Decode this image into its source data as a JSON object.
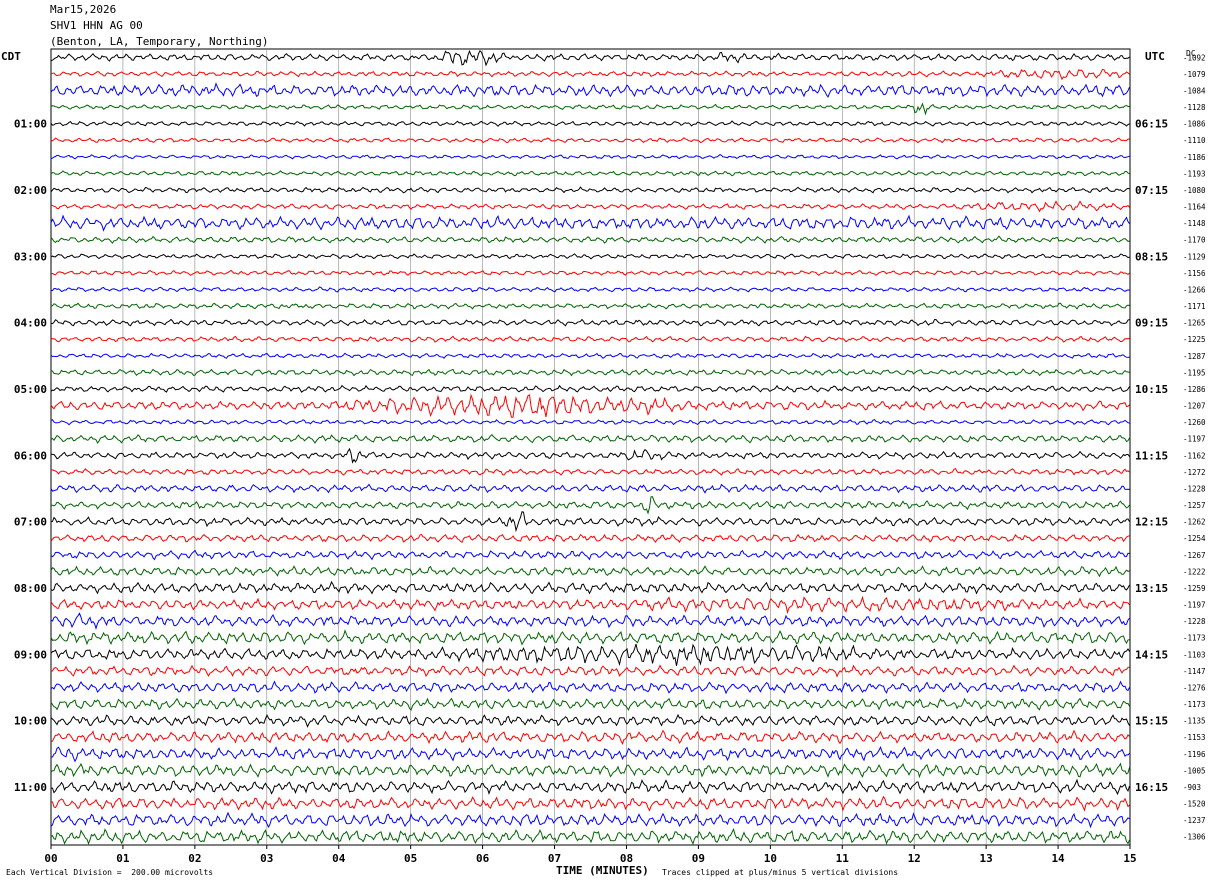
{
  "header": {
    "date": "Mar15,2026",
    "station": "SHV1 HHN AG 00",
    "location": "(Benton, LA, Temporary, Northing)"
  },
  "left_tz": "CDT",
  "right_tz": "UTC",
  "dc_label": "DC",
  "colors": [
    "#000000",
    "#ff0000",
    "#0000ff",
    "#006400"
  ],
  "footer": {
    "scale": "Each Vertical Division =  200.00 microvolts",
    "xlabel": "TIME (MINUTES)",
    "clip": "Traces clipped at plus/minus 5 vertical divisions"
  },
  "chart_data": {
    "type": "line",
    "title": "",
    "xlabel": "TIME (MINUTES)",
    "x_ticks": [
      "00",
      "01",
      "02",
      "03",
      "04",
      "05",
      "06",
      "07",
      "08",
      "09",
      "10",
      "11",
      "12",
      "13",
      "14",
      "15"
    ],
    "xlim": [
      0,
      15
    ],
    "trace_count": 48,
    "trace_minutes": 15,
    "left_hour_labels": [
      {
        "trace": 4,
        "label": "01:00"
      },
      {
        "trace": 8,
        "label": "02:00"
      },
      {
        "trace": 12,
        "label": "03:00"
      },
      {
        "trace": 16,
        "label": "04:00"
      },
      {
        "trace": 20,
        "label": "05:00"
      },
      {
        "trace": 24,
        "label": "06:00"
      },
      {
        "trace": 28,
        "label": "07:00"
      },
      {
        "trace": 32,
        "label": "08:00"
      },
      {
        "trace": 36,
        "label": "09:00"
      },
      {
        "trace": 40,
        "label": "10:00"
      },
      {
        "trace": 44,
        "label": "11:00"
      }
    ],
    "right_hour_labels": [
      {
        "trace": 4,
        "label": "06:15"
      },
      {
        "trace": 8,
        "label": "07:15"
      },
      {
        "trace": 12,
        "label": "08:15"
      },
      {
        "trace": 16,
        "label": "09:15"
      },
      {
        "trace": 20,
        "label": "10:15"
      },
      {
        "trace": 24,
        "label": "11:15"
      },
      {
        "trace": 28,
        "label": "12:15"
      },
      {
        "trace": 32,
        "label": "13:15"
      },
      {
        "trace": 36,
        "label": "14:15"
      },
      {
        "trace": 40,
        "label": "15:15"
      },
      {
        "trace": 44,
        "label": "16:15"
      }
    ],
    "dc_offsets": [
      -1092,
      -1079,
      -1084,
      -1128,
      -1086,
      -1110,
      -1186,
      -1193,
      -1080,
      -1164,
      -1148,
      -1170,
      -1129,
      -1156,
      -1266,
      -1171,
      -1265,
      -1225,
      -1287,
      -1195,
      -1286,
      -1207,
      -1260,
      -1197,
      -1162,
      -1272,
      -1228,
      -1257,
      -1262,
      -1254,
      -1267,
      -1222,
      -1259,
      -1197,
      -1228,
      -1173,
      -1103,
      -1147,
      -1276,
      -1173,
      -1135,
      -1153,
      -1196,
      -1005,
      -903,
      -1520,
      -1237,
      -1306
    ],
    "amplitude": [
      0.9,
      0.7,
      1.6,
      0.6,
      0.6,
      0.6,
      0.5,
      0.6,
      0.7,
      0.7,
      1.7,
      0.8,
      0.6,
      0.6,
      0.6,
      0.7,
      0.8,
      0.7,
      0.6,
      0.8,
      0.8,
      1.2,
      0.6,
      1.0,
      0.9,
      0.8,
      1.0,
      1.0,
      1.1,
      1.0,
      1.1,
      1.2,
      1.4,
      1.4,
      1.5,
      1.6,
      1.5,
      1.3,
      1.4,
      1.4,
      1.4,
      1.5,
      1.6,
      1.6,
      1.6,
      1.6,
      1.7,
      1.7
    ],
    "bursts": [
      {
        "trace": 0,
        "start_min": 5.3,
        "end_min": 6.3,
        "amp": 2.5
      },
      {
        "trace": 0,
        "start_min": 9.2,
        "end_min": 9.8,
        "amp": 1.6
      },
      {
        "trace": 1,
        "start_min": 13.0,
        "end_min": 15.0,
        "amp": 1.6
      },
      {
        "trace": 3,
        "start_min": 12.0,
        "end_min": 12.2,
        "amp": 3.0
      },
      {
        "trace": 9,
        "start_min": 12.5,
        "end_min": 15.0,
        "amp": 1.4
      },
      {
        "trace": 21,
        "start_min": 4.0,
        "end_min": 9.0,
        "amp": 3.0
      },
      {
        "trace": 21,
        "start_min": 6.0,
        "end_min": 7.3,
        "amp": 4.0
      },
      {
        "trace": 24,
        "start_min": 4.1,
        "end_min": 4.3,
        "amp": 3.0
      },
      {
        "trace": 24,
        "start_min": 7.8,
        "end_min": 8.6,
        "amp": 1.8
      },
      {
        "trace": 27,
        "start_min": 8.2,
        "end_min": 8.4,
        "amp": 3.0
      },
      {
        "trace": 28,
        "start_min": 6.3,
        "end_min": 6.7,
        "amp": 3.0
      },
      {
        "trace": 33,
        "start_min": 6.5,
        "end_min": 15.0,
        "amp": 2.0
      },
      {
        "trace": 34,
        "start_min": 0.0,
        "end_min": 1.0,
        "amp": 2.0
      },
      {
        "trace": 36,
        "start_min": 5.0,
        "end_min": 12.0,
        "amp": 2.8
      },
      {
        "trace": 41,
        "start_min": 0.0,
        "end_min": 15.0,
        "amp": 1.4
      },
      {
        "trace": 42,
        "start_min": 0.0,
        "end_min": 0.4,
        "amp": 2.5
      },
      {
        "trace": 42,
        "start_min": 10.8,
        "end_min": 11.0,
        "amp": 2.5
      }
    ]
  }
}
